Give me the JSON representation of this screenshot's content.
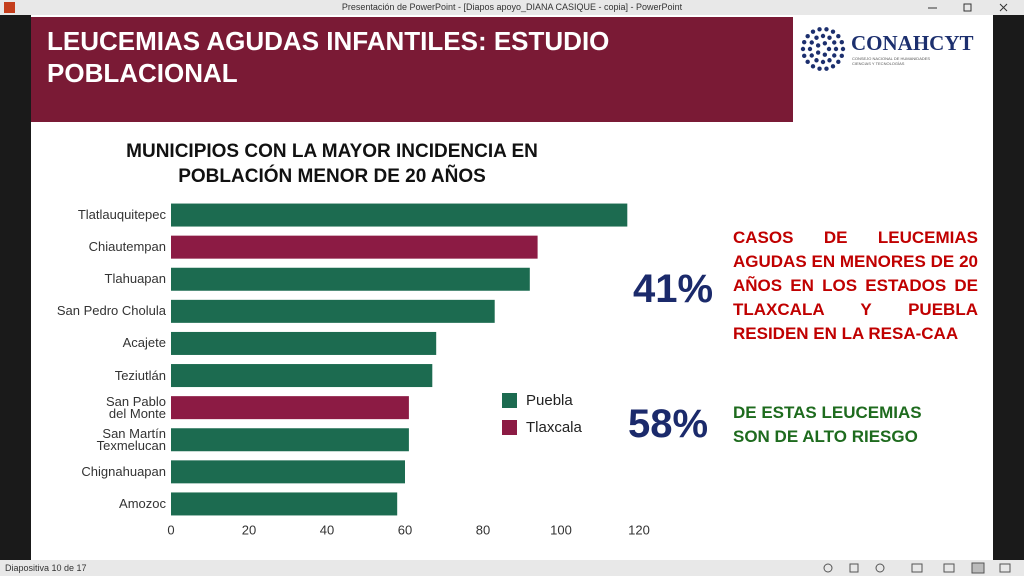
{
  "window": {
    "title": "Presentación de PowerPoint - [Diapos apoyo_DIANA CASIQUE - copia] - PowerPoint"
  },
  "slide": {
    "title": "LEUCEMIAS AGUDAS INFANTILES: ESTUDIO\nPOBLACIONAL",
    "logo": {
      "name": "CONAHCYT",
      "subtitle": "CONSEJO NACIONAL DE HUMANIDADES\nCIENCIAS Y TECNOLOGÍAS"
    },
    "stats": [
      {
        "figure": "41%",
        "text": "CASOS DE LEUCEMIAS AGUDAS EN MENORES DE 20 AÑOS EN LOS ESTADOS DE TLAXCALA Y PUEBLA RESIDEN EN LA RESA-CAA"
      },
      {
        "figure": "58%",
        "text": "DE ESTAS LEUCEMIAS\nSON DE ALTO RIESGO"
      }
    ]
  },
  "chart_data": {
    "type": "bar",
    "orientation": "horizontal",
    "title": "MUNICIPIOS CON LA MAYOR INCIDENCIA EN\nPOBLACIÓN MENOR DE 20 AÑOS",
    "categories": [
      "Tlatlauquitepec",
      "Chiautempan",
      "Tlahuapan",
      "San Pedro Cholula",
      "Acajete",
      "Teziutlán",
      "San Pablo\ndel Monte",
      "San Martín\nTexmelucan",
      "Chignahuapan",
      "Amozoc"
    ],
    "series": [
      {
        "name": "Puebla",
        "color": "#1c6b50",
        "values": [
          117,
          null,
          92,
          83,
          68,
          67,
          null,
          61,
          60,
          58
        ]
      },
      {
        "name": "Tlaxcala",
        "color": "#8c1b44",
        "values": [
          null,
          94,
          null,
          null,
          null,
          null,
          61,
          null,
          null,
          null
        ]
      }
    ],
    "xlim": [
      0,
      120
    ],
    "xticks": [
      0,
      20,
      40,
      60,
      80,
      100,
      120
    ],
    "grid": false
  },
  "status_bar": {
    "text": "Diapositiva 10 de 17"
  }
}
